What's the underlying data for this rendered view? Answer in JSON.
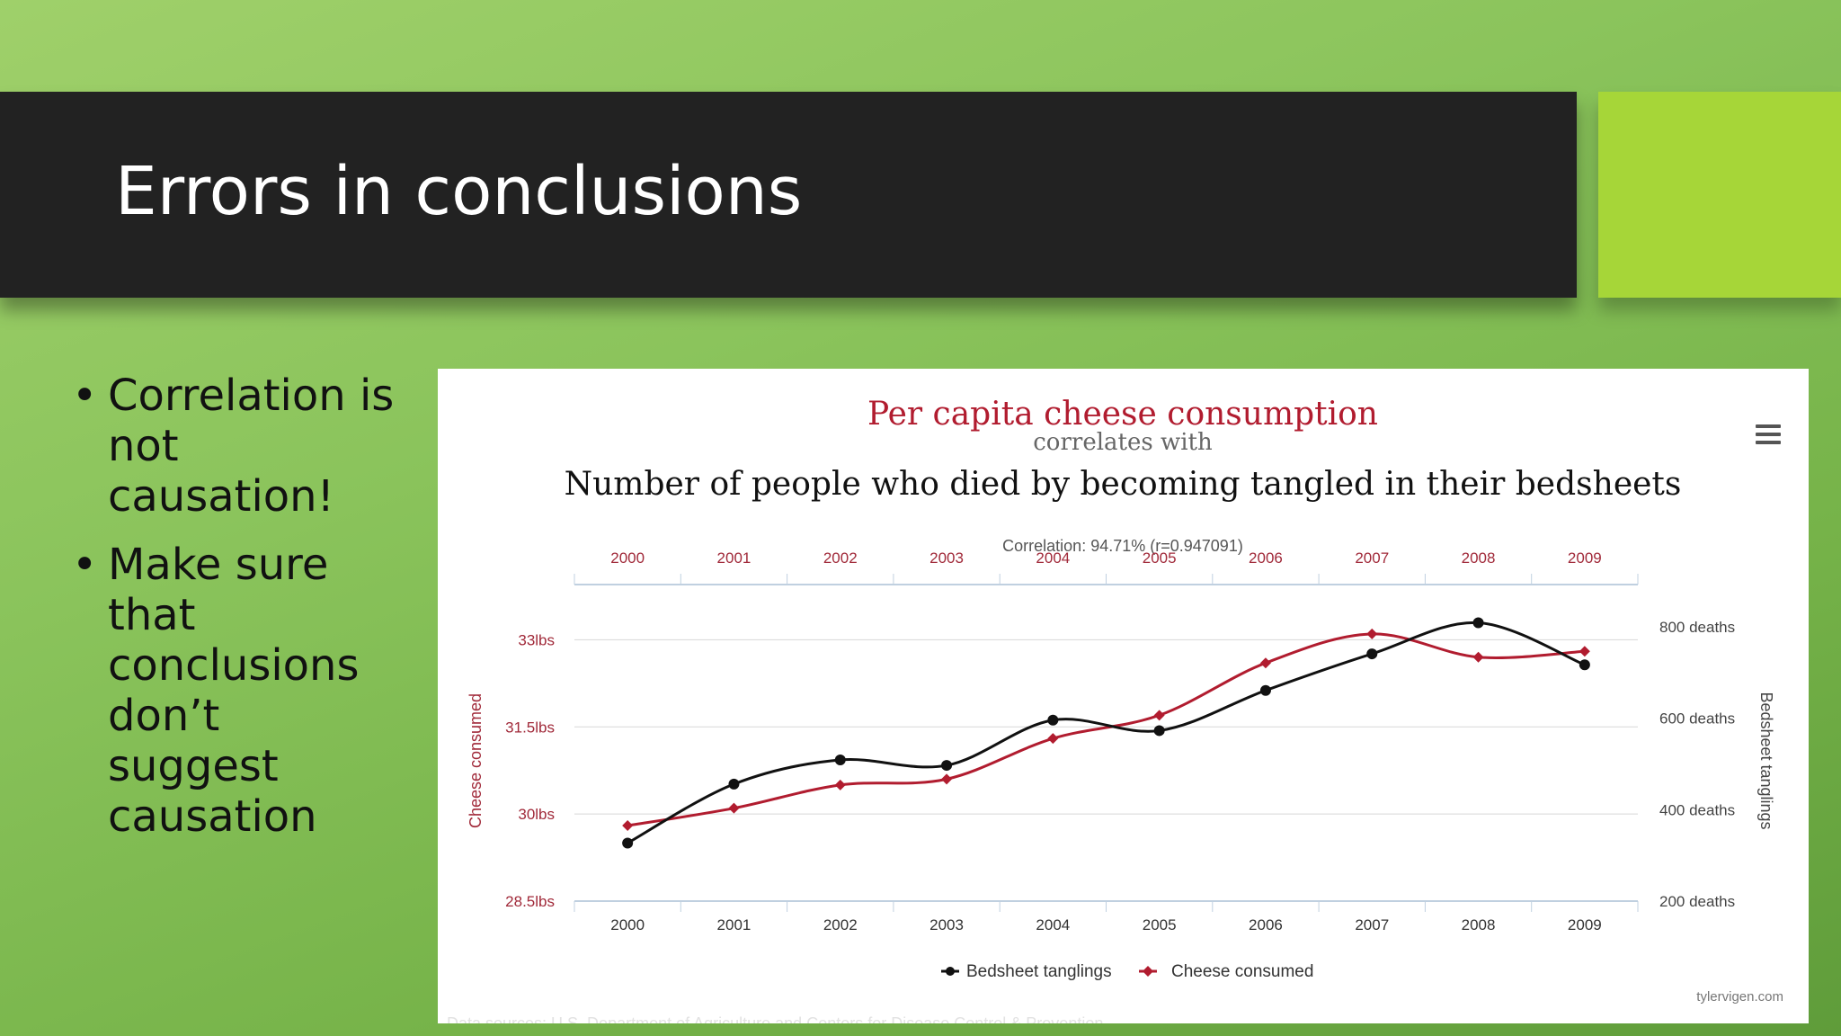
{
  "slide": {
    "title": "Errors in conclusions",
    "bullets": [
      "Correlation is not causation!",
      "Make sure that conclusions don’t suggest causation"
    ],
    "bullet_glyph": "•"
  },
  "chart_data": {
    "type": "line",
    "title": "Per capita cheese consumption",
    "connector": "correlates with",
    "subtitle": "Number of people who died by becoming tangled in their bedsheets",
    "correlation": "Correlation: 94.71% (r=0.947091)",
    "x": [
      "2000",
      "2001",
      "2002",
      "2003",
      "2004",
      "2005",
      "2006",
      "2007",
      "2008",
      "2009"
    ],
    "y_left": {
      "label": "Cheese consumed",
      "ticks": [
        "28.5lbs",
        "30lbs",
        "31.5lbs",
        "33lbs"
      ],
      "range": [
        28.5,
        33.3
      ]
    },
    "y_right": {
      "label": "Bedsheet tanglings",
      "ticks": [
        "200 deaths",
        "400 deaths",
        "600 deaths",
        "800 deaths"
      ],
      "range": [
        200,
        810
      ]
    },
    "series": [
      {
        "name": "Bedsheet tanglings",
        "color": "#111111",
        "marker": "circle",
        "axis": "right",
        "values": [
          327,
          456,
          509,
          497,
          596,
          573,
          661,
          741,
          809,
          717
        ]
      },
      {
        "name": "Cheese consumed",
        "color": "#b11c2f",
        "marker": "diamond",
        "axis": "left",
        "values": [
          29.8,
          30.1,
          30.5,
          30.6,
          31.3,
          31.7,
          32.6,
          33.1,
          32.7,
          32.8
        ]
      }
    ],
    "grid": true,
    "legend": "bottom-center",
    "credit": "tylervigen.com",
    "footnote": "Data sources: U.S. Department of Agriculture and Centers for Disease Control & Prevention"
  },
  "colors": {
    "title_red": "#b11c2f",
    "axis_tick_red": "#a12a3a",
    "axis_line": "#c0d0e0",
    "grid": "#d8d8d8"
  }
}
